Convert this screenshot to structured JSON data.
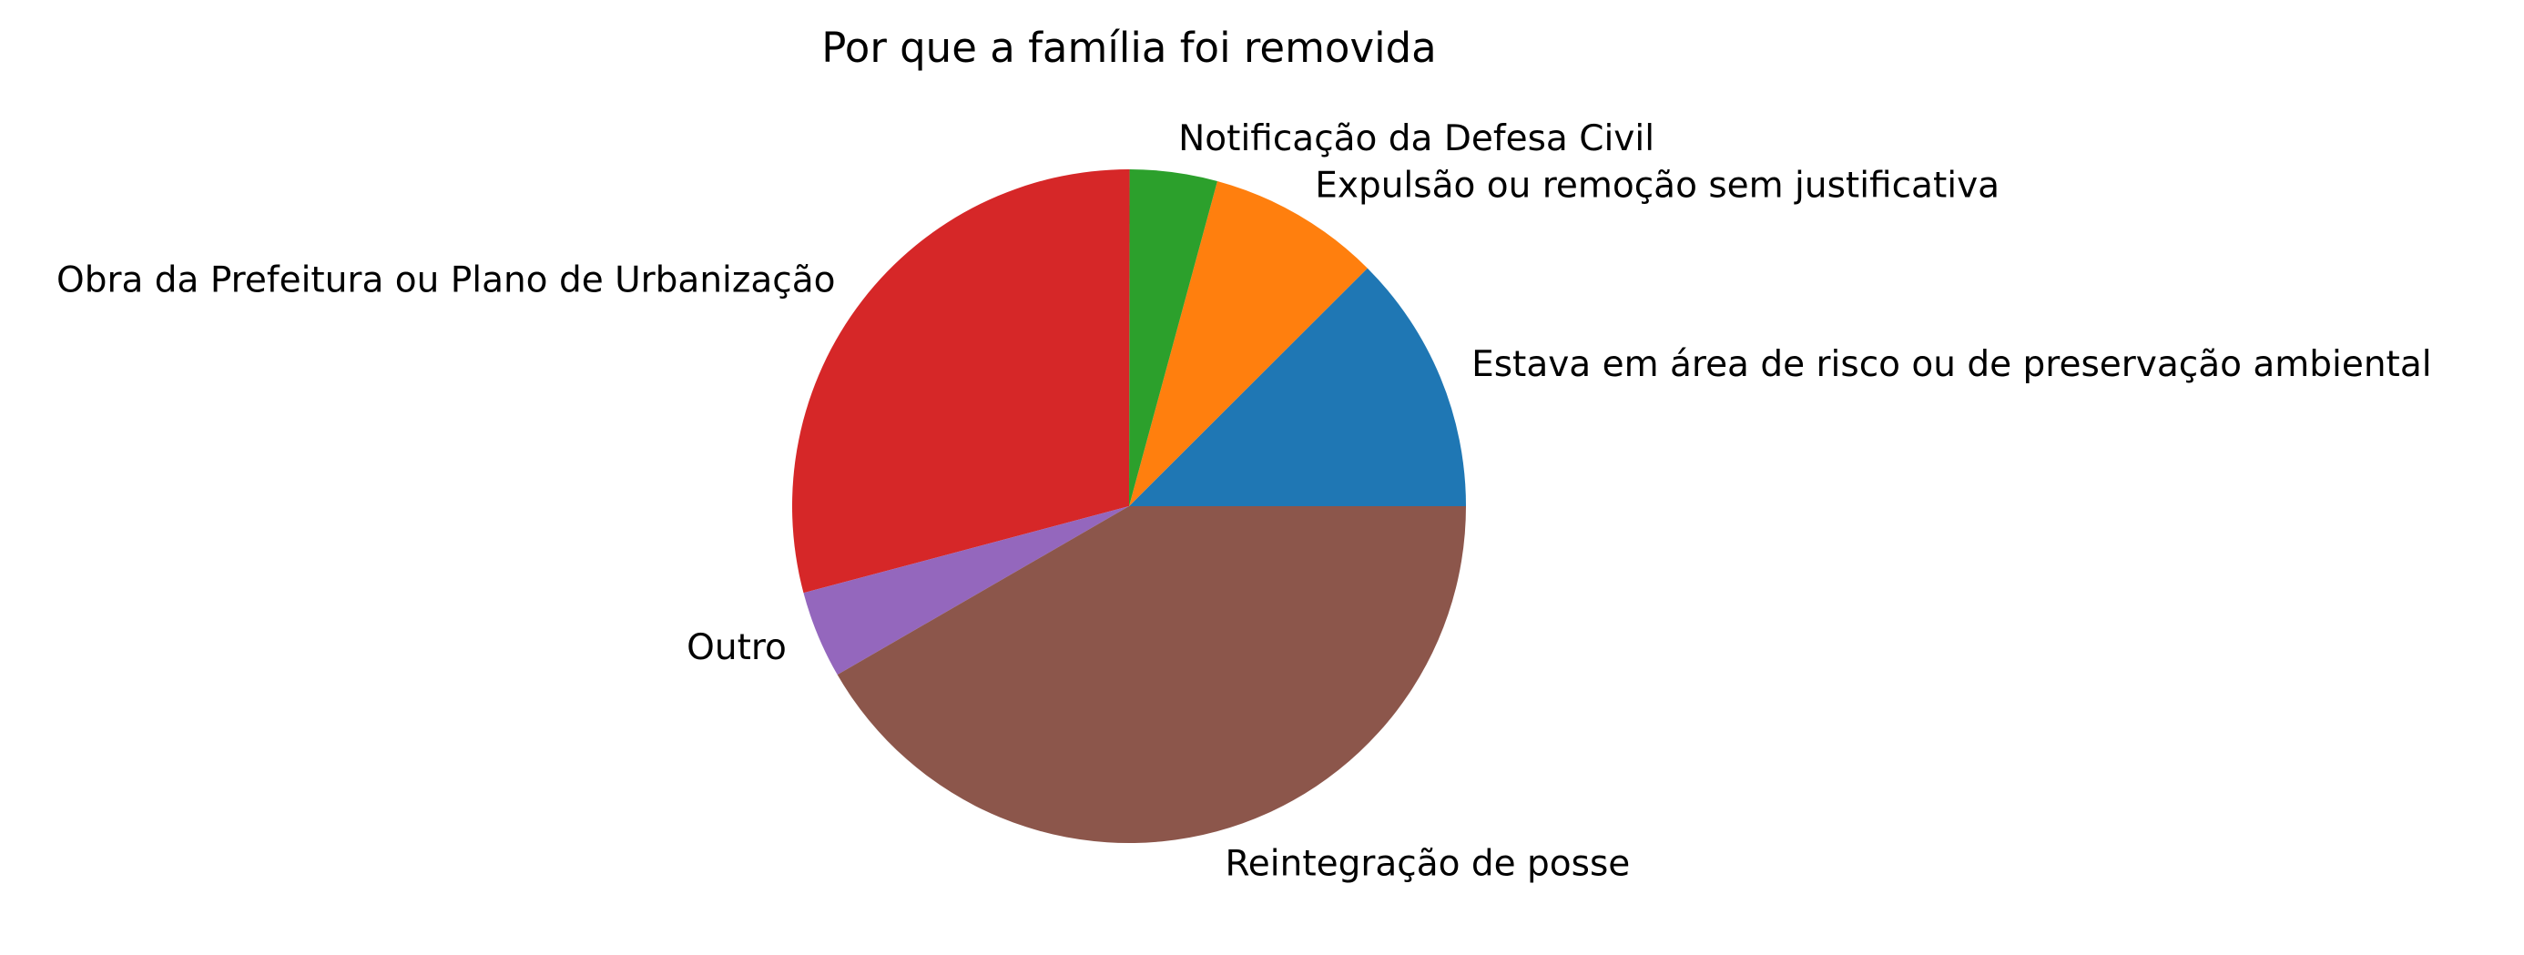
{
  "chart_data": {
    "type": "pie",
    "title": "Por que a família foi removida",
    "start_angle_deg": 0,
    "direction": "counterclockwise",
    "slices": [
      {
        "label": "Estava em área de risco ou de preservação ambiental",
        "value": 12.5,
        "color": "#1f77b4"
      },
      {
        "label": "Expulsão ou remoção sem justificativa",
        "value": 8.3,
        "color": "#ff7f0e"
      },
      {
        "label": "Notificação da Defesa Civil",
        "value": 4.2,
        "color": "#2ca02c"
      },
      {
        "label": "Obra da Prefeitura ou Plano de Urbanização",
        "value": 29.2,
        "color": "#d62728"
      },
      {
        "label": "Outro",
        "value": 4.2,
        "color": "#9467bd"
      },
      {
        "label": "Reintegração de posse",
        "value": 41.7,
        "color": "#8c564b"
      }
    ]
  }
}
